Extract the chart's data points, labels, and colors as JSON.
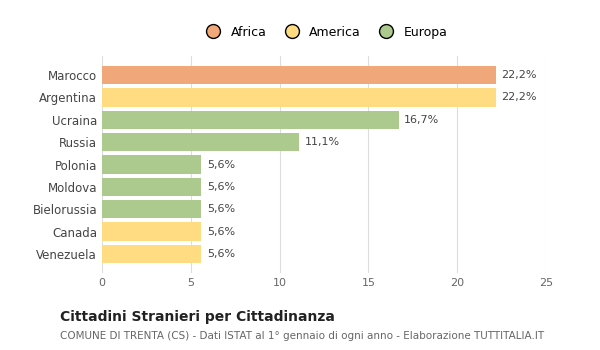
{
  "categories": [
    "Venezuela",
    "Canada",
    "Bielorussia",
    "Moldova",
    "Polonia",
    "Russia",
    "Ucraina",
    "Argentina",
    "Marocco"
  ],
  "values": [
    5.6,
    5.6,
    5.6,
    5.6,
    5.6,
    11.1,
    16.7,
    22.2,
    22.2
  ],
  "labels": [
    "5,6%",
    "5,6%",
    "5,6%",
    "5,6%",
    "5,6%",
    "11,1%",
    "16,7%",
    "22,2%",
    "22,2%"
  ],
  "colors": [
    "#FFDC82",
    "#FFDC82",
    "#ADCA8E",
    "#ADCA8E",
    "#ADCA8E",
    "#ADCA8E",
    "#ADCA8E",
    "#FFDC82",
    "#F0A87A"
  ],
  "legend_items": [
    {
      "label": "Africa",
      "color": "#F0A87A"
    },
    {
      "label": "America",
      "color": "#FFDC82"
    },
    {
      "label": "Europa",
      "color": "#ADCA8E"
    }
  ],
  "xlim": [
    0,
    25
  ],
  "xticks": [
    0,
    5,
    10,
    15,
    20,
    25
  ],
  "title": "Cittadini Stranieri per Cittadinanza",
  "subtitle": "COMUNE DI TRENTA (CS) - Dati ISTAT al 1° gennaio di ogni anno - Elaborazione TUTTITALIA.IT",
  "background_color": "#ffffff",
  "bar_height": 0.82,
  "label_fontsize": 8,
  "tick_fontsize": 8,
  "ytick_fontsize": 8.5,
  "title_fontsize": 10,
  "subtitle_fontsize": 7.5,
  "legend_fontsize": 9
}
